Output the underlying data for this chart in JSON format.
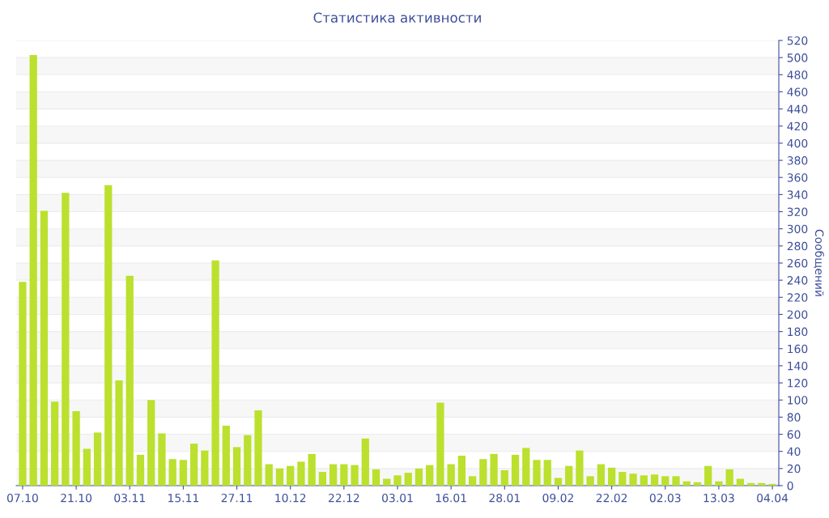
{
  "chart_data": {
    "type": "bar",
    "title": "Статистика активности",
    "ylabel": "Сообщений",
    "categories": [
      "07.10",
      null,
      null,
      null,
      null,
      "21.10",
      null,
      null,
      null,
      null,
      "03.11",
      null,
      null,
      null,
      null,
      "15.11",
      null,
      null,
      null,
      null,
      "27.11",
      null,
      null,
      null,
      null,
      "10.12",
      null,
      null,
      null,
      null,
      "22.12",
      null,
      null,
      null,
      null,
      "03.01",
      null,
      null,
      null,
      null,
      "16.01",
      null,
      null,
      null,
      null,
      "28.01",
      null,
      null,
      null,
      null,
      "09.02",
      null,
      null,
      null,
      null,
      "22.02",
      null,
      null,
      null,
      null,
      "02.03",
      null,
      null,
      null,
      null,
      "13.03",
      null,
      null,
      null,
      null,
      "04.04"
    ],
    "values": [
      238,
      503,
      321,
      98,
      342,
      87,
      43,
      62,
      351,
      123,
      245,
      36,
      100,
      61,
      31,
      30,
      49,
      41,
      263,
      70,
      45,
      59,
      88,
      25,
      20,
      23,
      28,
      37,
      16,
      25,
      25,
      24,
      55,
      19,
      8,
      12,
      15,
      20,
      24,
      97,
      25,
      35,
      11,
      31,
      37,
      18,
      36,
      44,
      30,
      30,
      9,
      23,
      41,
      11,
      25,
      21,
      16,
      14,
      12,
      13,
      11,
      11,
      5,
      4,
      23,
      5,
      19,
      8,
      3,
      3,
      2
    ],
    "color": "#bbe02e",
    "ylim": [
      0,
      520
    ],
    "yticks": [
      0,
      20,
      40,
      60,
      80,
      100,
      120,
      140,
      160,
      180,
      200,
      220,
      240,
      260,
      280,
      300,
      320,
      340,
      360,
      380,
      400,
      420,
      440,
      460,
      480,
      500,
      520
    ],
    "grid": "y",
    "legend": false
  }
}
